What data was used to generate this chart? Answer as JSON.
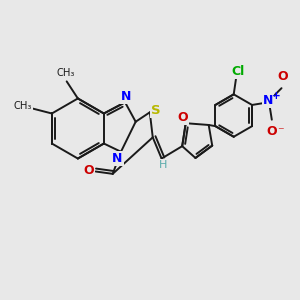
{
  "bg_color": "#e8e8e8",
  "bond_color": "#1a1a1a",
  "bond_width": 1.4,
  "figsize": [
    3.0,
    3.0
  ],
  "dpi": 100,
  "xlim": [
    0,
    10
  ],
  "ylim": [
    0,
    10
  ]
}
